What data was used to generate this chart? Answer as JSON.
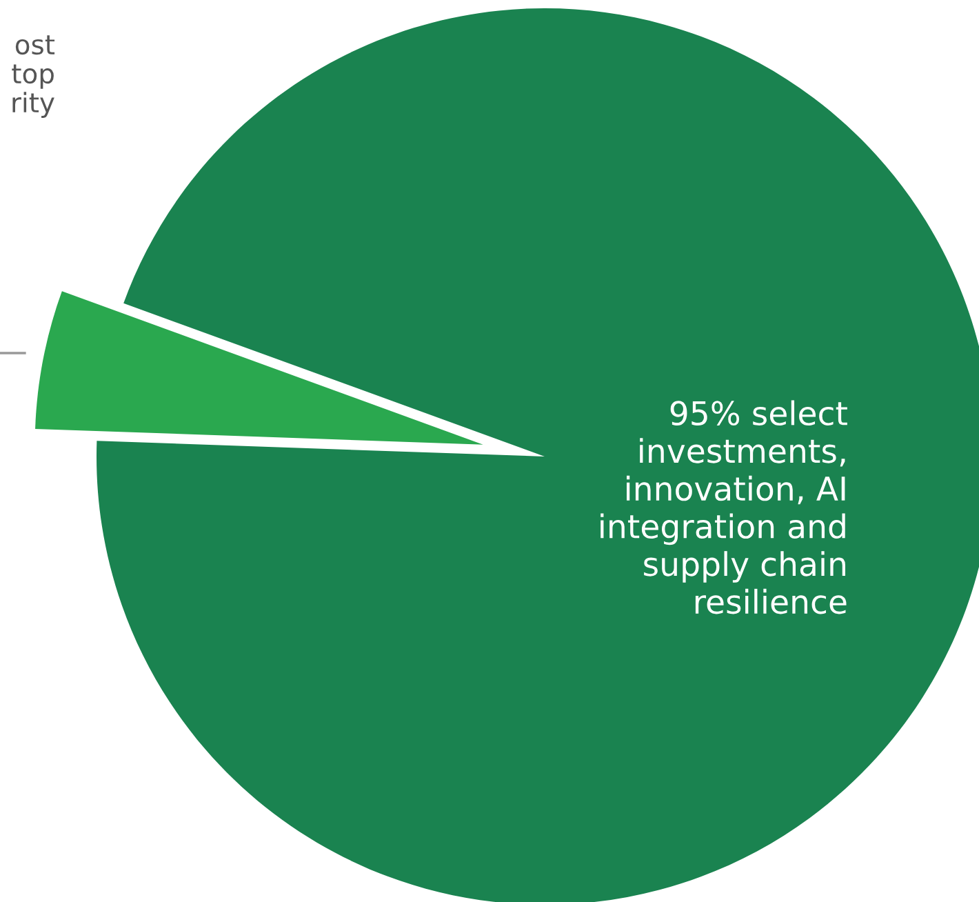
{
  "chart_data": {
    "type": "pie",
    "categories": [
      null,
      null
    ],
    "values": [
      5,
      95
    ],
    "colors": [
      "#2aa84f",
      "#1a8350"
    ],
    "annotations": [
      "ost\ntop\nrity",
      "95% select\ninvestments,\ninnovation, AI\nintegration and\nsupply chain\nresilience"
    ]
  }
}
